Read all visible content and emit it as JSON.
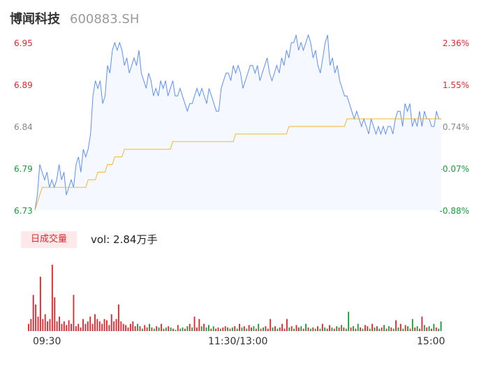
{
  "header": {
    "name": "博闻科技",
    "code": "600883.SH"
  },
  "colors": {
    "up": "#e0282e",
    "down": "#1a9a3a",
    "neutral": "#888888",
    "price_line": "#5b8ff9",
    "avg_line": "#f5b532"
  },
  "chart_data": [
    {
      "type": "line",
      "series": [
        {
          "values": [
            6.73,
            6.75,
            6.79,
            6.78,
            6.77,
            6.78,
            6.76,
            6.77,
            6.76,
            6.77,
            6.79,
            6.77,
            6.78,
            6.75,
            6.76,
            6.77,
            6.76,
            6.79,
            6.8,
            6.78,
            6.81,
            6.8,
            6.81,
            6.83,
            6.88,
            6.9,
            6.89,
            6.9,
            6.87,
            6.88,
            6.92,
            6.91,
            6.94,
            6.95,
            6.94,
            6.95,
            6.94,
            6.92,
            6.93,
            6.91,
            6.92,
            6.93,
            6.92,
            6.94,
            6.91,
            6.9,
            6.89,
            6.91,
            6.9,
            6.88,
            6.89,
            6.88,
            6.9,
            6.89,
            6.9,
            6.88,
            6.89,
            6.9,
            6.88,
            6.88,
            6.89,
            6.88,
            6.87,
            6.86,
            6.87,
            6.87,
            6.88,
            6.89,
            6.88,
            6.89,
            6.88,
            6.87,
            6.89,
            6.88,
            6.87,
            6.86,
            6.86,
            6.89,
            6.9,
            6.91,
            6.91,
            6.9,
            6.92,
            6.91,
            6.92,
            6.91,
            6.89,
            6.9,
            6.91,
            6.92,
            6.92,
            6.91,
            6.92,
            6.9,
            6.91,
            6.92,
            6.93,
            6.91,
            6.9,
            6.91,
            6.92,
            6.91,
            6.93,
            6.92,
            6.94,
            6.93,
            6.95,
            6.95,
            6.96,
            6.94,
            6.95,
            6.94,
            6.95,
            6.96,
            6.95,
            6.93,
            6.94,
            6.92,
            6.91,
            6.93,
            6.95,
            6.96,
            6.92,
            6.93,
            6.91,
            6.92,
            6.9,
            6.89,
            6.88,
            6.88,
            6.87,
            6.86,
            6.85,
            6.86,
            6.85,
            6.84,
            6.85,
            6.84,
            6.83,
            6.85,
            6.84,
            6.83,
            6.84,
            6.83,
            6.84,
            6.83,
            6.84,
            6.84,
            6.83,
            6.85,
            6.86,
            6.86,
            6.84,
            6.87,
            6.86,
            6.87,
            6.84,
            6.85,
            6.84,
            6.86,
            6.84,
            6.86,
            6.85,
            6.85,
            6.84,
            6.84,
            6.86,
            6.85,
            6.85
          ]
        },
        {
          "values": [
            6.73,
            6.74,
            6.75,
            6.76,
            6.76,
            6.76,
            6.76,
            6.76,
            6.76,
            6.76,
            6.76,
            6.76,
            6.76,
            6.76,
            6.76,
            6.76,
            6.76,
            6.76,
            6.76,
            6.76,
            6.76,
            6.76,
            6.77,
            6.77,
            6.77,
            6.77,
            6.78,
            6.78,
            6.78,
            6.78,
            6.79,
            6.79,
            6.79,
            6.8,
            6.8,
            6.8,
            6.8,
            6.81,
            6.81,
            6.81,
            6.81,
            6.81,
            6.81,
            6.81,
            6.81,
            6.81,
            6.81,
            6.81,
            6.81,
            6.81,
            6.81,
            6.81,
            6.81,
            6.81,
            6.81,
            6.81,
            6.81,
            6.82,
            6.82,
            6.82,
            6.82,
            6.82,
            6.82,
            6.82,
            6.82,
            6.82,
            6.82,
            6.82,
            6.82,
            6.82,
            6.82,
            6.82,
            6.82,
            6.82,
            6.82,
            6.82,
            6.82,
            6.82,
            6.82,
            6.82,
            6.82,
            6.82,
            6.82,
            6.83,
            6.83,
            6.83,
            6.83,
            6.83,
            6.83,
            6.83,
            6.83,
            6.83,
            6.83,
            6.83,
            6.83,
            6.83,
            6.83,
            6.83,
            6.83,
            6.83,
            6.83,
            6.83,
            6.83,
            6.83,
            6.83,
            6.84,
            6.84,
            6.84,
            6.84,
            6.84,
            6.84,
            6.84,
            6.84,
            6.84,
            6.84,
            6.84,
            6.84,
            6.84,
            6.84,
            6.84,
            6.84,
            6.84,
            6.84,
            6.84,
            6.84,
            6.84,
            6.84,
            6.84,
            6.84,
            6.85,
            6.85,
            6.85,
            6.85,
            6.85,
            6.85,
            6.85,
            6.85,
            6.85,
            6.85,
            6.85,
            6.85,
            6.85,
            6.85,
            6.85,
            6.85,
            6.85,
            6.85,
            6.85,
            6.85,
            6.85,
            6.85,
            6.85,
            6.85,
            6.85,
            6.85,
            6.85,
            6.85,
            6.85,
            6.85,
            6.85,
            6.85,
            6.85,
            6.85,
            6.85,
            6.85,
            6.85,
            6.85,
            6.85,
            6.85
          ]
        }
      ],
      "ylim": [
        6.73,
        6.95
      ],
      "y_ticks_left": [
        "6.95",
        "6.89",
        "6.84",
        "6.79",
        "6.73"
      ],
      "y_ticks_right": [
        "2.36%",
        "1.55%",
        "0.74%",
        "-0.07%",
        "-0.88%"
      ],
      "y_tick_colors": [
        "#e0282e",
        "#e0282e",
        "#888888",
        "#1a9a3a",
        "#1a9a3a"
      ]
    },
    {
      "type": "bar",
      "legend": "日成交量",
      "vol_label": "vol: 2.84万手",
      "x_ticks": [
        "09:30",
        "11:30/13:00",
        "15:00"
      ],
      "values": [
        6,
        10,
        30,
        22,
        12,
        45,
        10,
        14,
        8,
        10,
        55,
        28,
        8,
        12,
        6,
        8,
        5,
        9,
        6,
        30,
        4,
        6,
        3,
        10,
        6,
        8,
        12,
        6,
        14,
        10,
        8,
        6,
        10,
        9,
        5,
        14,
        8,
        10,
        22,
        8,
        6,
        5,
        3,
        6,
        8,
        4,
        6,
        4,
        2,
        5,
        3,
        6,
        3,
        2,
        4,
        3,
        6,
        2,
        3,
        4,
        3,
        2,
        1,
        5,
        2,
        3,
        2,
        4,
        6,
        3,
        12,
        3,
        10,
        4,
        6,
        3,
        5,
        2,
        4,
        2,
        3,
        2,
        3,
        4,
        3,
        2,
        3,
        4,
        2,
        6,
        3,
        4,
        2,
        5,
        3,
        4,
        2,
        6,
        2,
        3,
        4,
        2,
        10,
        3,
        4,
        2,
        3,
        6,
        2,
        10,
        3,
        4,
        2,
        5,
        3,
        4,
        2,
        6,
        3,
        2,
        3,
        2,
        4,
        2,
        6,
        3,
        2,
        5,
        3,
        2,
        4,
        3,
        5,
        3,
        2,
        16,
        3,
        4,
        2,
        6,
        3,
        2,
        5,
        4,
        2,
        6,
        3,
        4,
        2,
        3,
        5,
        2,
        4,
        3,
        2,
        9,
        3,
        6,
        2,
        5,
        4,
        2,
        10,
        3,
        4,
        2,
        12,
        5,
        3,
        4,
        2,
        6,
        3,
        2,
        8
      ],
      "bar_colors": [
        "r",
        "r",
        "r",
        "r",
        "r",
        "r",
        "r",
        "r",
        "r",
        "r",
        "r",
        "r",
        "r",
        "r",
        "r",
        "r",
        "r",
        "r",
        "r",
        "r",
        "r",
        "r",
        "r",
        "r",
        "r",
        "r",
        "r",
        "r",
        "r",
        "r",
        "r",
        "r",
        "r",
        "r",
        "r",
        "r",
        "r",
        "r",
        "r",
        "r",
        "r",
        "r",
        "r",
        "r",
        "r",
        "r",
        "g",
        "r",
        "g",
        "r",
        "r",
        "g",
        "r",
        "g",
        "r",
        "g",
        "r",
        "r",
        "g",
        "r",
        "g",
        "r",
        "g",
        "r",
        "g",
        "g",
        "r",
        "g",
        "r",
        "g",
        "r",
        "r",
        "r",
        "g",
        "r",
        "g",
        "g",
        "r",
        "g",
        "r",
        "r",
        "g",
        "r",
        "r",
        "g",
        "r",
        "g",
        "r",
        "g",
        "r",
        "g",
        "r",
        "g",
        "r",
        "r",
        "g",
        "r",
        "g",
        "r",
        "g",
        "r",
        "r",
        "r",
        "g",
        "r",
        "g",
        "r",
        "r",
        "r",
        "r",
        "g",
        "r",
        "g",
        "r",
        "r",
        "g",
        "r",
        "g",
        "r",
        "g",
        "r",
        "g",
        "r",
        "g",
        "r",
        "g",
        "r",
        "r",
        "g",
        "r",
        "g",
        "r",
        "g",
        "r",
        "g",
        "g",
        "r",
        "g",
        "r",
        "g",
        "r",
        "g",
        "r",
        "r",
        "g",
        "r",
        "g",
        "r",
        "g",
        "r",
        "g",
        "r",
        "g",
        "r",
        "g",
        "r",
        "g",
        "r",
        "g",
        "r",
        "g",
        "r",
        "g",
        "r",
        "g",
        "r",
        "r",
        "g",
        "r",
        "g",
        "r",
        "g",
        "r",
        "g",
        "g"
      ]
    }
  ]
}
